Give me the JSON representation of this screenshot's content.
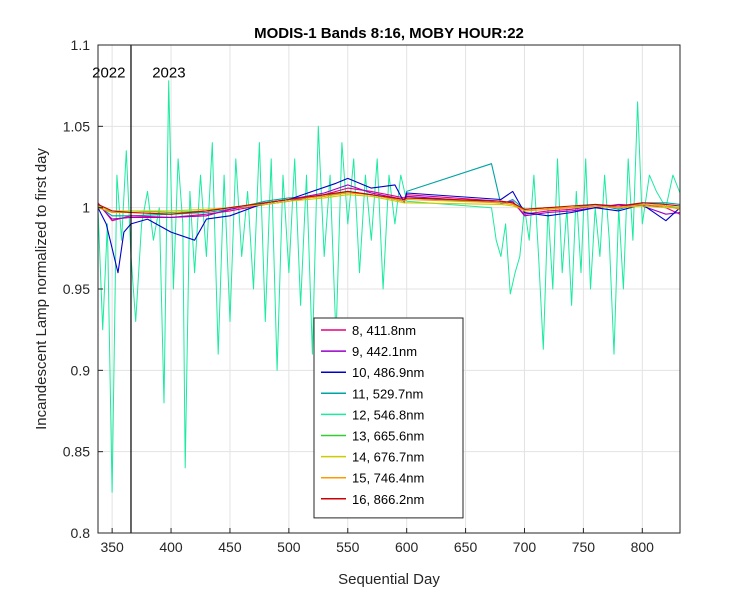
{
  "chart_data": {
    "type": "line",
    "title": "MODIS-1 Bands 8:16, MOBY HOUR:22",
    "xlabel": "Sequential Day",
    "ylabel": "Incandescent Lamp normalized to first day",
    "xlim": [
      338,
      832
    ],
    "ylim": [
      0.8,
      1.1
    ],
    "xticks": [
      350,
      400,
      450,
      500,
      550,
      600,
      650,
      700,
      750,
      800
    ],
    "yticks": [
      0.8,
      0.85,
      0.9,
      0.95,
      1,
      1.05,
      1.1
    ],
    "grid": true,
    "legend_position": "lower-center",
    "annotations": [
      {
        "text": "2022",
        "x": 350,
        "y": 1.083
      },
      {
        "text": "2023",
        "x": 384,
        "y": 1.083
      }
    ],
    "vertical_line": {
      "x": 366
    },
    "series": [
      {
        "name": "8, 411.8nm",
        "color": "#e6007e",
        "points": [
          [
            338,
            1.003
          ],
          [
            350,
            0.992
          ],
          [
            366,
            0.995
          ],
          [
            400,
            0.994
          ],
          [
            430,
            0.996
          ],
          [
            450,
            0.998
          ],
          [
            480,
            1.002
          ],
          [
            500,
            1.004
          ],
          [
            530,
            1.008
          ],
          [
            550,
            1.012
          ],
          [
            570,
            1.01
          ],
          [
            598,
            1.006
          ],
          [
            600,
            1.008
          ],
          [
            680,
            1.004
          ],
          [
            690,
            1.003
          ],
          [
            700,
            0.996
          ],
          [
            720,
            0.998
          ],
          [
            740,
            0.999
          ],
          [
            760,
            1.001
          ],
          [
            780,
            1.001
          ],
          [
            800,
            1.002
          ],
          [
            820,
            1.0
          ],
          [
            832,
            0.996
          ]
        ]
      },
      {
        "name": "9, 442.1nm",
        "color": "#9900cc",
        "points": [
          [
            338,
            1.002
          ],
          [
            350,
            0.993
          ],
          [
            366,
            0.994
          ],
          [
            400,
            0.994
          ],
          [
            430,
            0.995
          ],
          [
            450,
            0.999
          ],
          [
            480,
            1.003
          ],
          [
            500,
            1.005
          ],
          [
            530,
            1.009
          ],
          [
            550,
            1.014
          ],
          [
            570,
            1.009
          ],
          [
            598,
            1.005
          ],
          [
            600,
            1.007
          ],
          [
            680,
            1.003
          ],
          [
            690,
            1.004
          ],
          [
            700,
            0.995
          ],
          [
            720,
            0.997
          ],
          [
            740,
            0.998
          ],
          [
            760,
            1.0
          ],
          [
            780,
            1.002
          ],
          [
            800,
            1.001
          ],
          [
            820,
            0.996
          ],
          [
            832,
            0.997
          ]
        ]
      },
      {
        "name": "10, 486.9nm",
        "color": "#0000cc",
        "points": [
          [
            338,
            1.0
          ],
          [
            345,
            0.99
          ],
          [
            350,
            0.975
          ],
          [
            355,
            0.96
          ],
          [
            360,
            0.985
          ],
          [
            366,
            0.99
          ],
          [
            380,
            0.993
          ],
          [
            400,
            0.985
          ],
          [
            420,
            0.98
          ],
          [
            430,
            0.993
          ],
          [
            450,
            0.995
          ],
          [
            480,
            1.003
          ],
          [
            500,
            1.005
          ],
          [
            520,
            1.01
          ],
          [
            540,
            1.015
          ],
          [
            550,
            1.018
          ],
          [
            570,
            1.012
          ],
          [
            590,
            1.014
          ],
          [
            598,
            1.003
          ],
          [
            600,
            1.009
          ],
          [
            680,
            1.005
          ],
          [
            690,
            1.01
          ],
          [
            700,
            0.997
          ],
          [
            720,
            0.995
          ],
          [
            740,
            0.997
          ],
          [
            760,
            1.0
          ],
          [
            780,
            0.998
          ],
          [
            800,
            1.002
          ],
          [
            820,
            0.992
          ],
          [
            832,
            1.0
          ]
        ]
      },
      {
        "name": "11, 529.7nm",
        "color": "#00a3a3",
        "points": [
          [
            338,
            1.001
          ],
          [
            350,
            0.995
          ],
          [
            366,
            0.995
          ],
          [
            400,
            0.996
          ],
          [
            430,
            0.997
          ],
          [
            450,
            0.999
          ],
          [
            480,
            1.004
          ],
          [
            500,
            1.006
          ],
          [
            530,
            1.007
          ],
          [
            550,
            1.01
          ],
          [
            570,
            1.008
          ],
          [
            598,
            1.004
          ],
          [
            600,
            1.01
          ],
          [
            672,
            1.027
          ],
          [
            680,
            1.002
          ],
          [
            690,
            1.005
          ],
          [
            700,
            0.999
          ],
          [
            720,
            1.0
          ],
          [
            740,
            1.0
          ],
          [
            760,
            1.002
          ],
          [
            780,
            0.999
          ],
          [
            800,
            1.003
          ],
          [
            820,
            1.003
          ],
          [
            832,
            1.002
          ]
        ]
      },
      {
        "name": "12, 546.8nm",
        "color": "#1aeba0",
        "points": [
          [
            338,
            1.0
          ],
          [
            342,
            0.925
          ],
          [
            346,
            0.99
          ],
          [
            350,
            0.825
          ],
          [
            354,
            1.02
          ],
          [
            358,
            0.98
          ],
          [
            362,
            1.035
          ],
          [
            366,
            0.97
          ],
          [
            370,
            0.93
          ],
          [
            375,
            0.99
          ],
          [
            380,
            1.01
          ],
          [
            385,
            0.98
          ],
          [
            390,
            1.0
          ],
          [
            394,
            0.88
          ],
          [
            398,
            1.078
          ],
          [
            402,
            0.95
          ],
          [
            406,
            1.03
          ],
          [
            410,
            0.99
          ],
          [
            412,
            0.84
          ],
          [
            416,
            1.01
          ],
          [
            420,
            0.96
          ],
          [
            425,
            1.02
          ],
          [
            430,
            0.97
          ],
          [
            435,
            1.04
          ],
          [
            440,
            0.91
          ],
          [
            445,
            1.02
          ],
          [
            450,
            0.93
          ],
          [
            455,
            1.03
          ],
          [
            460,
            0.97
          ],
          [
            465,
            1.01
          ],
          [
            470,
            0.95
          ],
          [
            475,
            1.04
          ],
          [
            480,
            0.93
          ],
          [
            485,
            1.03
          ],
          [
            490,
            0.9
          ],
          [
            495,
            1.02
          ],
          [
            500,
            0.96
          ],
          [
            505,
            1.03
          ],
          [
            510,
            0.94
          ],
          [
            515,
            1.02
          ],
          [
            520,
            0.91
          ],
          [
            525,
            1.05
          ],
          [
            530,
            0.97
          ],
          [
            535,
            1.02
          ],
          [
            540,
            0.92
          ],
          [
            545,
            1.04
          ],
          [
            550,
            0.99
          ],
          [
            555,
            1.03
          ],
          [
            560,
            0.96
          ],
          [
            565,
            1.02
          ],
          [
            570,
            0.98
          ],
          [
            575,
            1.03
          ],
          [
            580,
            0.95
          ],
          [
            585,
            1.02
          ],
          [
            590,
            0.99
          ],
          [
            595,
            1.02
          ],
          [
            600,
            1.004
          ],
          [
            672,
            1.0
          ],
          [
            676,
            0.98
          ],
          [
            680,
            0.97
          ],
          [
            684,
            0.99
          ],
          [
            688,
            0.947
          ],
          [
            692,
            0.96
          ],
          [
            696,
            0.97
          ],
          [
            700,
            1.0
          ],
          [
            704,
            0.98
          ],
          [
            708,
            1.02
          ],
          [
            712,
            0.97
          ],
          [
            716,
            0.913
          ],
          [
            720,
            1.0
          ],
          [
            724,
            0.95
          ],
          [
            728,
            1.03
          ],
          [
            732,
            0.96
          ],
          [
            736,
            1.0
          ],
          [
            740,
            0.94
          ],
          [
            744,
            1.01
          ],
          [
            748,
            0.96
          ],
          [
            752,
            1.03
          ],
          [
            756,
            0.95
          ],
          [
            760,
            1.0
          ],
          [
            764,
            0.97
          ],
          [
            768,
            1.02
          ],
          [
            772,
            0.98
          ],
          [
            776,
            0.91
          ],
          [
            780,
            1.0
          ],
          [
            784,
            0.95
          ],
          [
            788,
            1.03
          ],
          [
            792,
            0.98
          ],
          [
            796,
            1.065
          ],
          [
            800,
            0.99
          ],
          [
            806,
            1.02
          ],
          [
            812,
            1.01
          ],
          [
            820,
            1.0
          ],
          [
            826,
            1.02
          ],
          [
            832,
            1.009
          ]
        ]
      },
      {
        "name": "13, 665.6nm",
        "color": "#33cc33",
        "points": [
          [
            338,
            1.002
          ],
          [
            350,
            0.997
          ],
          [
            366,
            0.998
          ],
          [
            400,
            0.997
          ],
          [
            430,
            0.998
          ],
          [
            450,
            1.0
          ],
          [
            480,
            1.003
          ],
          [
            500,
            1.005
          ],
          [
            530,
            1.007
          ],
          [
            550,
            1.01
          ],
          [
            570,
            1.008
          ],
          [
            598,
            1.004
          ],
          [
            600,
            1.006
          ],
          [
            680,
            1.003
          ],
          [
            690,
            1.002
          ],
          [
            700,
            0.999
          ],
          [
            720,
            1.0
          ],
          [
            740,
            1.0
          ],
          [
            760,
            1.001
          ],
          [
            780,
            1.0
          ],
          [
            800,
            1.002
          ],
          [
            820,
            1.001
          ],
          [
            832,
            1.0
          ]
        ]
      },
      {
        "name": "14, 676.7nm",
        "color": "#cccc00",
        "points": [
          [
            338,
            1.001
          ],
          [
            350,
            0.998
          ],
          [
            366,
            0.998
          ],
          [
            400,
            0.998
          ],
          [
            430,
            0.999
          ],
          [
            450,
            1.0
          ],
          [
            480,
            1.002
          ],
          [
            500,
            1.004
          ],
          [
            530,
            1.006
          ],
          [
            550,
            1.008
          ],
          [
            570,
            1.007
          ],
          [
            598,
            1.003
          ],
          [
            600,
            1.003
          ],
          [
            680,
            1.002
          ],
          [
            690,
            1.001
          ],
          [
            700,
            0.999
          ],
          [
            720,
            1.0
          ],
          [
            740,
            1.0
          ],
          [
            760,
            1.001
          ],
          [
            780,
            1.0
          ],
          [
            800,
            1.001
          ],
          [
            820,
            1.0
          ],
          [
            832,
            1.0
          ]
        ]
      },
      {
        "name": "15, 746.4nm",
        "color": "#ff9900",
        "points": [
          [
            338,
            1.0
          ],
          [
            350,
            0.997
          ],
          [
            366,
            0.997
          ],
          [
            400,
            0.996
          ],
          [
            430,
            0.998
          ],
          [
            450,
            1.0
          ],
          [
            480,
            1.003
          ],
          [
            500,
            1.005
          ],
          [
            530,
            1.007
          ],
          [
            550,
            1.009
          ],
          [
            570,
            1.008
          ],
          [
            598,
            1.004
          ],
          [
            600,
            1.005
          ],
          [
            680,
            1.003
          ],
          [
            690,
            1.002
          ],
          [
            700,
            0.998
          ],
          [
            720,
            0.999
          ],
          [
            740,
            1.0
          ],
          [
            760,
            1.001
          ],
          [
            780,
            1.0
          ],
          [
            800,
            1.002
          ],
          [
            820,
            1.001
          ],
          [
            832,
            0.999
          ]
        ]
      },
      {
        "name": "16, 866.2nm",
        "color": "#cc0000",
        "points": [
          [
            338,
            1.002
          ],
          [
            350,
            0.998
          ],
          [
            366,
            0.997
          ],
          [
            400,
            0.996
          ],
          [
            430,
            0.998
          ],
          [
            450,
            1.0
          ],
          [
            480,
            1.003
          ],
          [
            500,
            1.005
          ],
          [
            530,
            1.008
          ],
          [
            550,
            1.01
          ],
          [
            570,
            1.008
          ],
          [
            598,
            1.005
          ],
          [
            600,
            1.006
          ],
          [
            680,
            1.004
          ],
          [
            690,
            1.003
          ],
          [
            700,
            0.999
          ],
          [
            720,
            1.0
          ],
          [
            740,
            1.001
          ],
          [
            760,
            1.002
          ],
          [
            780,
            1.001
          ],
          [
            800,
            1.003
          ],
          [
            820,
            1.002
          ],
          [
            832,
            1.001
          ]
        ]
      }
    ]
  }
}
